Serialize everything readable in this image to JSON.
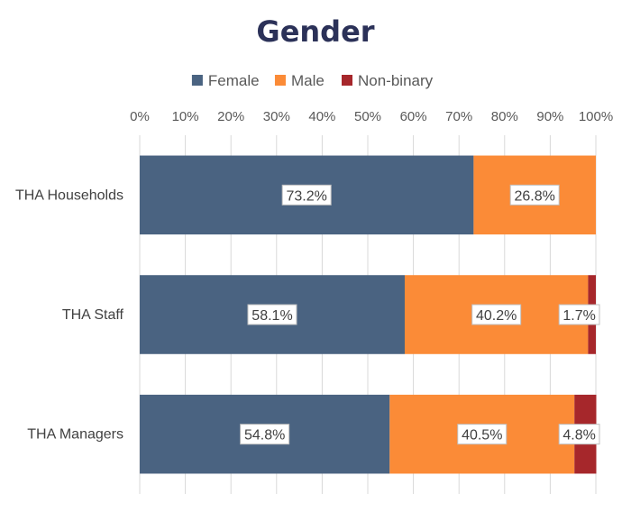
{
  "chart_data": {
    "type": "bar",
    "orientation": "horizontal",
    "stacked": "percent",
    "title": "Gender",
    "categories": [
      "THA Households",
      "THA Staff",
      "THA Managers"
    ],
    "series": [
      {
        "name": "Female",
        "color": "#4a6381",
        "values": [
          73.2,
          58.1,
          54.8
        ],
        "labels": [
          "73.2%",
          "58.1%",
          "54.8%"
        ]
      },
      {
        "name": "Male",
        "color": "#fb8b37",
        "values": [
          26.8,
          40.2,
          40.5
        ],
        "labels": [
          "26.8%",
          "40.2%",
          "40.5%"
        ]
      },
      {
        "name": "Non-binary",
        "color": "#a6272b",
        "values": [
          0,
          1.7,
          4.8
        ],
        "labels": [
          "",
          "1.7%",
          "4.8%"
        ]
      }
    ],
    "xlim": [
      0,
      100
    ],
    "x_ticks": [
      "0%",
      "10%",
      "20%",
      "30%",
      "40%",
      "50%",
      "60%",
      "70%",
      "80%",
      "90%",
      "100%"
    ],
    "x_axis_position": "top",
    "legend_position": "top",
    "grid": true
  }
}
